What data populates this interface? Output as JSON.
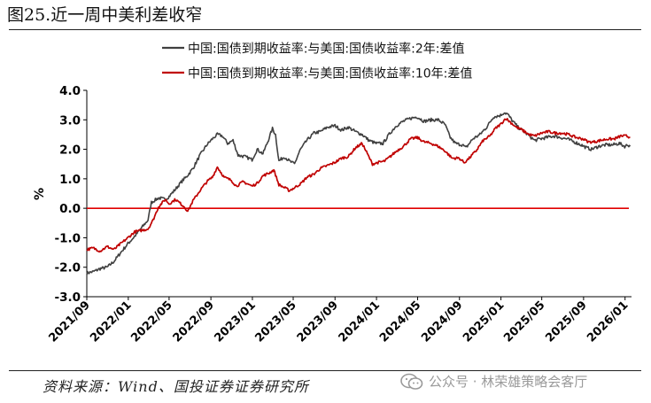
{
  "figure_title": "图25.近一周中美利差收窄",
  "footer": {
    "source": "资料来源：Wind、国投证券证券研究所",
    "watermark": "公众号 · 林荣雄策略会客厅",
    "watermark_icon": "wechat-icon"
  },
  "colors": {
    "series_2y": "#404040",
    "series_10y": "#c00000",
    "zero_line": "#e00000"
  },
  "chart_data": {
    "type": "line",
    "title": "",
    "xlabel": "",
    "ylabel": "%",
    "ylim": [
      -3.0,
      4.0
    ],
    "yticks": [
      -3.0,
      -2.0,
      -1.0,
      0.0,
      1.0,
      2.0,
      3.0,
      4.0
    ],
    "ytick_labels": [
      "-3.0",
      "-2.0",
      "-1.0",
      "0.0",
      "1.0",
      "2.0",
      "3.0",
      "4.0"
    ],
    "xlim": [
      "2021-09-01",
      "2026-01-20"
    ],
    "xticks": [
      "2021-09-01",
      "2022-01-01",
      "2022-05-01",
      "2022-09-01",
      "2023-01-01",
      "2023-05-01",
      "2023-09-01",
      "2024-01-01",
      "2024-05-01",
      "2024-09-01",
      "2025-01-01",
      "2025-05-01",
      "2025-09-01",
      "2026-01-01"
    ],
    "xtick_labels": [
      "2021/09",
      "2022/01",
      "2022/05",
      "2022/09",
      "2023/01",
      "2023/05",
      "2023/09",
      "2024/01",
      "2024/05",
      "2024/09",
      "2025/01",
      "2025/05",
      "2025/09",
      "2026/01"
    ],
    "grid": false,
    "legend_position": "top-center",
    "reference_line": 0.0,
    "series": [
      {
        "name": "中国:国债到期收益率:与美国:国债收益率:2年:差值",
        "color": "#404040",
        "points": [
          [
            "2021-09-01",
            -2.2
          ],
          [
            "2021-09-20",
            -2.15
          ],
          [
            "2021-10-10",
            -2.05
          ],
          [
            "2021-10-31",
            -2.0
          ],
          [
            "2021-11-20",
            -1.8
          ],
          [
            "2021-12-10",
            -1.5
          ],
          [
            "2021-12-31",
            -1.2
          ],
          [
            "2022-01-20",
            -0.95
          ],
          [
            "2022-02-10",
            -0.65
          ],
          [
            "2022-02-28",
            -0.4
          ],
          [
            "2022-03-10",
            0.2
          ],
          [
            "2022-03-31",
            0.35
          ],
          [
            "2022-04-20",
            0.3
          ],
          [
            "2022-05-01",
            0.4
          ],
          [
            "2022-05-20",
            0.65
          ],
          [
            "2022-06-10",
            0.95
          ],
          [
            "2022-06-20",
            1.05
          ],
          [
            "2022-07-10",
            1.35
          ],
          [
            "2022-07-31",
            1.8
          ],
          [
            "2022-08-20",
            2.15
          ],
          [
            "2022-09-05",
            2.35
          ],
          [
            "2022-09-20",
            2.5
          ],
          [
            "2022-10-05",
            2.45
          ],
          [
            "2022-10-20",
            2.2
          ],
          [
            "2022-11-05",
            2.3
          ],
          [
            "2022-11-20",
            1.8
          ],
          [
            "2022-12-10",
            1.75
          ],
          [
            "2022-12-31",
            1.65
          ],
          [
            "2023-01-15",
            2.0
          ],
          [
            "2023-02-01",
            1.85
          ],
          [
            "2023-02-15",
            2.25
          ],
          [
            "2023-03-01",
            2.7
          ],
          [
            "2023-03-10",
            2.5
          ],
          [
            "2023-03-20",
            1.6
          ],
          [
            "2023-04-05",
            1.75
          ],
          [
            "2023-04-20",
            1.6
          ],
          [
            "2023-05-05",
            1.5
          ],
          [
            "2023-05-20",
            1.95
          ],
          [
            "2023-06-10",
            2.3
          ],
          [
            "2023-07-01",
            2.55
          ],
          [
            "2023-07-20",
            2.6
          ],
          [
            "2023-08-10",
            2.75
          ],
          [
            "2023-09-01",
            2.8
          ],
          [
            "2023-09-20",
            2.65
          ],
          [
            "2023-10-10",
            2.75
          ],
          [
            "2023-10-31",
            2.6
          ],
          [
            "2023-11-20",
            2.5
          ],
          [
            "2023-12-10",
            2.3
          ],
          [
            "2023-12-31",
            2.2
          ],
          [
            "2024-01-20",
            2.2
          ],
          [
            "2024-02-10",
            2.55
          ],
          [
            "2024-02-28",
            2.8
          ],
          [
            "2024-03-20",
            2.95
          ],
          [
            "2024-04-10",
            3.05
          ],
          [
            "2024-04-30",
            3.1
          ],
          [
            "2024-05-20",
            2.95
          ],
          [
            "2024-06-10",
            3.0
          ],
          [
            "2024-06-30",
            3.0
          ],
          [
            "2024-07-20",
            2.85
          ],
          [
            "2024-08-05",
            2.4
          ],
          [
            "2024-08-20",
            2.2
          ],
          [
            "2024-09-10",
            2.15
          ],
          [
            "2024-09-20",
            2.05
          ],
          [
            "2024-10-10",
            2.35
          ],
          [
            "2024-10-31",
            2.5
          ],
          [
            "2024-11-20",
            2.75
          ],
          [
            "2024-12-10",
            3.1
          ],
          [
            "2024-12-31",
            3.15
          ],
          [
            "2025-01-10",
            3.25
          ],
          [
            "2025-01-20",
            3.2
          ],
          [
            "2025-02-05",
            2.95
          ],
          [
            "2025-02-20",
            2.75
          ],
          [
            "2025-03-10",
            2.6
          ],
          [
            "2025-03-31",
            2.4
          ],
          [
            "2025-04-10",
            2.3
          ],
          [
            "2025-04-25",
            2.35
          ],
          [
            "2025-05-15",
            2.4
          ],
          [
            "2025-06-05",
            2.45
          ],
          [
            "2025-06-25",
            2.4
          ],
          [
            "2025-07-15",
            2.35
          ],
          [
            "2025-08-05",
            2.25
          ],
          [
            "2025-08-25",
            2.15
          ],
          [
            "2025-09-10",
            2.05
          ],
          [
            "2025-09-25",
            2.0
          ],
          [
            "2025-10-15",
            2.1
          ],
          [
            "2025-11-05",
            2.15
          ],
          [
            "2025-11-25",
            2.15
          ],
          [
            "2025-12-15",
            2.2
          ],
          [
            "2025-12-31",
            2.1
          ],
          [
            "2026-01-10",
            2.15
          ],
          [
            "2026-01-16",
            2.1
          ]
        ]
      },
      {
        "name": "中国:国债到期收益率:与美国:国债收益率:10年:差值",
        "color": "#c00000",
        "points": [
          [
            "2021-09-01",
            -1.4
          ],
          [
            "2021-09-20",
            -1.35
          ],
          [
            "2021-10-10",
            -1.45
          ],
          [
            "2021-10-31",
            -1.3
          ],
          [
            "2021-11-20",
            -1.4
          ],
          [
            "2021-12-10",
            -1.2
          ],
          [
            "2021-12-31",
            -1.0
          ],
          [
            "2022-01-20",
            -0.8
          ],
          [
            "2022-02-10",
            -0.75
          ],
          [
            "2022-02-28",
            -0.7
          ],
          [
            "2022-03-15",
            -0.4
          ],
          [
            "2022-03-31",
            0.05
          ],
          [
            "2022-04-20",
            0.3
          ],
          [
            "2022-05-01",
            0.15
          ],
          [
            "2022-05-20",
            0.3
          ],
          [
            "2022-06-15",
            0.05
          ],
          [
            "2022-06-25",
            -0.1
          ],
          [
            "2022-07-10",
            0.25
          ],
          [
            "2022-07-31",
            0.6
          ],
          [
            "2022-08-20",
            0.9
          ],
          [
            "2022-09-05",
            1.05
          ],
          [
            "2022-09-20",
            1.4
          ],
          [
            "2022-10-10",
            1.05
          ],
          [
            "2022-10-31",
            0.95
          ],
          [
            "2022-11-15",
            0.75
          ],
          [
            "2022-12-05",
            0.9
          ],
          [
            "2022-12-31",
            0.75
          ],
          [
            "2023-01-15",
            0.85
          ],
          [
            "2023-02-01",
            1.1
          ],
          [
            "2023-02-20",
            1.2
          ],
          [
            "2023-03-05",
            1.3
          ],
          [
            "2023-03-20",
            0.8
          ],
          [
            "2023-04-05",
            0.7
          ],
          [
            "2023-04-20",
            0.6
          ],
          [
            "2023-05-05",
            0.7
          ],
          [
            "2023-05-25",
            0.85
          ],
          [
            "2023-06-10",
            1.05
          ],
          [
            "2023-06-30",
            1.15
          ],
          [
            "2023-07-20",
            1.35
          ],
          [
            "2023-08-10",
            1.45
          ],
          [
            "2023-08-31",
            1.55
          ],
          [
            "2023-09-20",
            1.7
          ],
          [
            "2023-10-10",
            1.75
          ],
          [
            "2023-10-31",
            2.05
          ],
          [
            "2023-11-20",
            2.2
          ],
          [
            "2023-12-05",
            1.85
          ],
          [
            "2023-12-20",
            1.5
          ],
          [
            "2024-01-05",
            1.55
          ],
          [
            "2024-01-25",
            1.6
          ],
          [
            "2024-02-10",
            1.75
          ],
          [
            "2024-03-01",
            1.95
          ],
          [
            "2024-03-20",
            2.1
          ],
          [
            "2024-04-10",
            2.35
          ],
          [
            "2024-04-30",
            2.4
          ],
          [
            "2024-05-20",
            2.25
          ],
          [
            "2024-06-10",
            2.2
          ],
          [
            "2024-06-30",
            2.1
          ],
          [
            "2024-07-20",
            1.95
          ],
          [
            "2024-08-10",
            1.7
          ],
          [
            "2024-08-31",
            1.7
          ],
          [
            "2024-09-15",
            1.55
          ],
          [
            "2024-09-30",
            1.7
          ],
          [
            "2024-10-20",
            1.95
          ],
          [
            "2024-11-10",
            2.3
          ],
          [
            "2024-11-30",
            2.45
          ],
          [
            "2024-12-15",
            2.7
          ],
          [
            "2024-12-31",
            2.85
          ],
          [
            "2025-01-15",
            3.05
          ],
          [
            "2025-01-31",
            2.9
          ],
          [
            "2025-02-15",
            2.75
          ],
          [
            "2025-03-05",
            2.65
          ],
          [
            "2025-03-25",
            2.5
          ],
          [
            "2025-04-10",
            2.45
          ],
          [
            "2025-04-30",
            2.55
          ],
          [
            "2025-05-20",
            2.6
          ],
          [
            "2025-06-10",
            2.55
          ],
          [
            "2025-06-30",
            2.55
          ],
          [
            "2025-07-20",
            2.5
          ],
          [
            "2025-08-10",
            2.4
          ],
          [
            "2025-08-31",
            2.35
          ],
          [
            "2025-09-15",
            2.25
          ],
          [
            "2025-09-30",
            2.25
          ],
          [
            "2025-10-20",
            2.3
          ],
          [
            "2025-11-10",
            2.35
          ],
          [
            "2025-11-30",
            2.35
          ],
          [
            "2025-12-20",
            2.45
          ],
          [
            "2026-01-05",
            2.45
          ],
          [
            "2026-01-16",
            2.4
          ]
        ]
      }
    ]
  }
}
